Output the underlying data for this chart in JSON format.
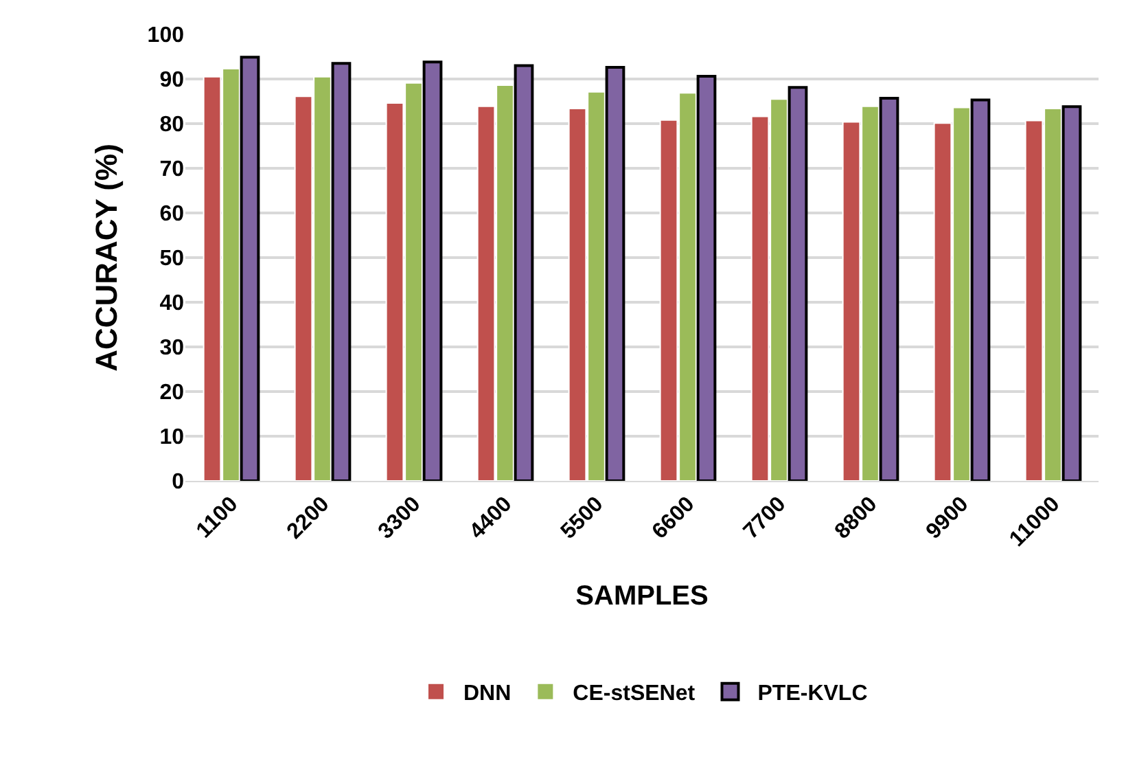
{
  "chart_data": {
    "type": "bar",
    "xlabel": "SAMPLES",
    "ylabel": "ACCURACY (%)",
    "categories": [
      "1100",
      "2200",
      "3300",
      "4400",
      "5500",
      "6600",
      "7700",
      "8800",
      "9900",
      "11000"
    ],
    "series": [
      {
        "name": "DNN",
        "color": "#c0504d",
        "values": [
          90.5,
          86.1,
          84.6,
          83.9,
          83.4,
          80.8,
          81.6,
          80.4,
          80.1,
          80.7
        ]
      },
      {
        "name": "CE-stSENet",
        "color": "#9bbb59",
        "values": [
          92.3,
          90.5,
          89.1,
          88.6,
          87.1,
          86.9,
          85.5,
          83.9,
          83.6,
          83.4
        ]
      },
      {
        "name": "PTE-KVLC",
        "color": "#8064a2",
        "values": [
          94.9,
          93.5,
          93.8,
          93.0,
          92.6,
          90.6,
          88.1,
          85.7,
          85.3,
          83.8
        ]
      }
    ],
    "ylim": [
      0,
      100
    ],
    "yticks": [
      0,
      10,
      20,
      30,
      40,
      50,
      60,
      70,
      80,
      90,
      100
    ],
    "grid": "y",
    "legend": "bottom"
  }
}
